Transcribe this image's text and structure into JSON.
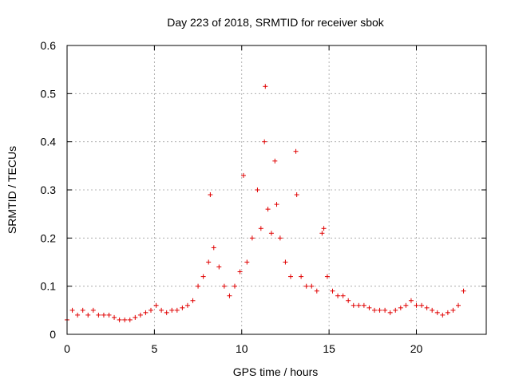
{
  "chart_data": {
    "type": "scatter",
    "title": "Day 223 of 2018, SRMTID for receiver sbok",
    "xlabel": "GPS time / hours",
    "ylabel": "SRMTID / TECUs",
    "xlim": [
      0,
      24
    ],
    "ylim": [
      0,
      0.6
    ],
    "xticks": [
      0,
      5,
      10,
      15,
      20
    ],
    "xtick_labels": [
      "0",
      "5",
      "10",
      "15",
      "20"
    ],
    "yticks": [
      0,
      0.1,
      0.2,
      0.3,
      0.4,
      0.5,
      0.6
    ],
    "ytick_labels": [
      "0",
      "0.1",
      "0.2",
      "0.3",
      "0.4",
      "0.5",
      "0.6"
    ],
    "grid": true,
    "marker": "+",
    "color": "#e00000",
    "series": [
      {
        "name": "SRMTID",
        "x": [
          0.0,
          0.3,
          0.6,
          0.9,
          1.2,
          1.5,
          1.8,
          2.1,
          2.4,
          2.7,
          3.0,
          3.3,
          3.6,
          3.9,
          4.2,
          4.5,
          4.8,
          5.1,
          5.4,
          5.7,
          6.0,
          6.3,
          6.6,
          6.9,
          7.2,
          7.5,
          7.8,
          8.1,
          8.2,
          8.4,
          8.7,
          9.0,
          9.3,
          9.6,
          9.9,
          10.1,
          10.3,
          10.6,
          10.9,
          11.1,
          11.3,
          11.35,
          11.5,
          11.7,
          11.9,
          12.0,
          12.2,
          12.5,
          12.8,
          13.1,
          13.15,
          13.4,
          13.7,
          14.0,
          14.3,
          14.6,
          14.7,
          14.9,
          15.2,
          15.5,
          15.8,
          16.1,
          16.4,
          16.7,
          17.0,
          17.3,
          17.6,
          17.9,
          18.2,
          18.5,
          18.8,
          19.1,
          19.4,
          19.7,
          20.0,
          20.3,
          20.6,
          20.9,
          21.2,
          21.5,
          21.8,
          22.1,
          22.4,
          22.7
        ],
        "y": [
          0.03,
          0.05,
          0.04,
          0.05,
          0.04,
          0.05,
          0.04,
          0.04,
          0.04,
          0.035,
          0.03,
          0.03,
          0.03,
          0.035,
          0.04,
          0.045,
          0.05,
          0.06,
          0.05,
          0.045,
          0.05,
          0.05,
          0.055,
          0.06,
          0.07,
          0.1,
          0.12,
          0.15,
          0.29,
          0.18,
          0.14,
          0.1,
          0.08,
          0.1,
          0.13,
          0.33,
          0.15,
          0.2,
          0.3,
          0.22,
          0.4,
          0.515,
          0.26,
          0.21,
          0.36,
          0.27,
          0.2,
          0.15,
          0.12,
          0.38,
          0.29,
          0.12,
          0.1,
          0.1,
          0.09,
          0.21,
          0.22,
          0.12,
          0.09,
          0.08,
          0.08,
          0.07,
          0.06,
          0.06,
          0.06,
          0.055,
          0.05,
          0.05,
          0.05,
          0.045,
          0.05,
          0.055,
          0.06,
          0.07,
          0.06,
          0.06,
          0.055,
          0.05,
          0.045,
          0.04,
          0.045,
          0.05,
          0.06,
          0.09
        ]
      }
    ]
  }
}
